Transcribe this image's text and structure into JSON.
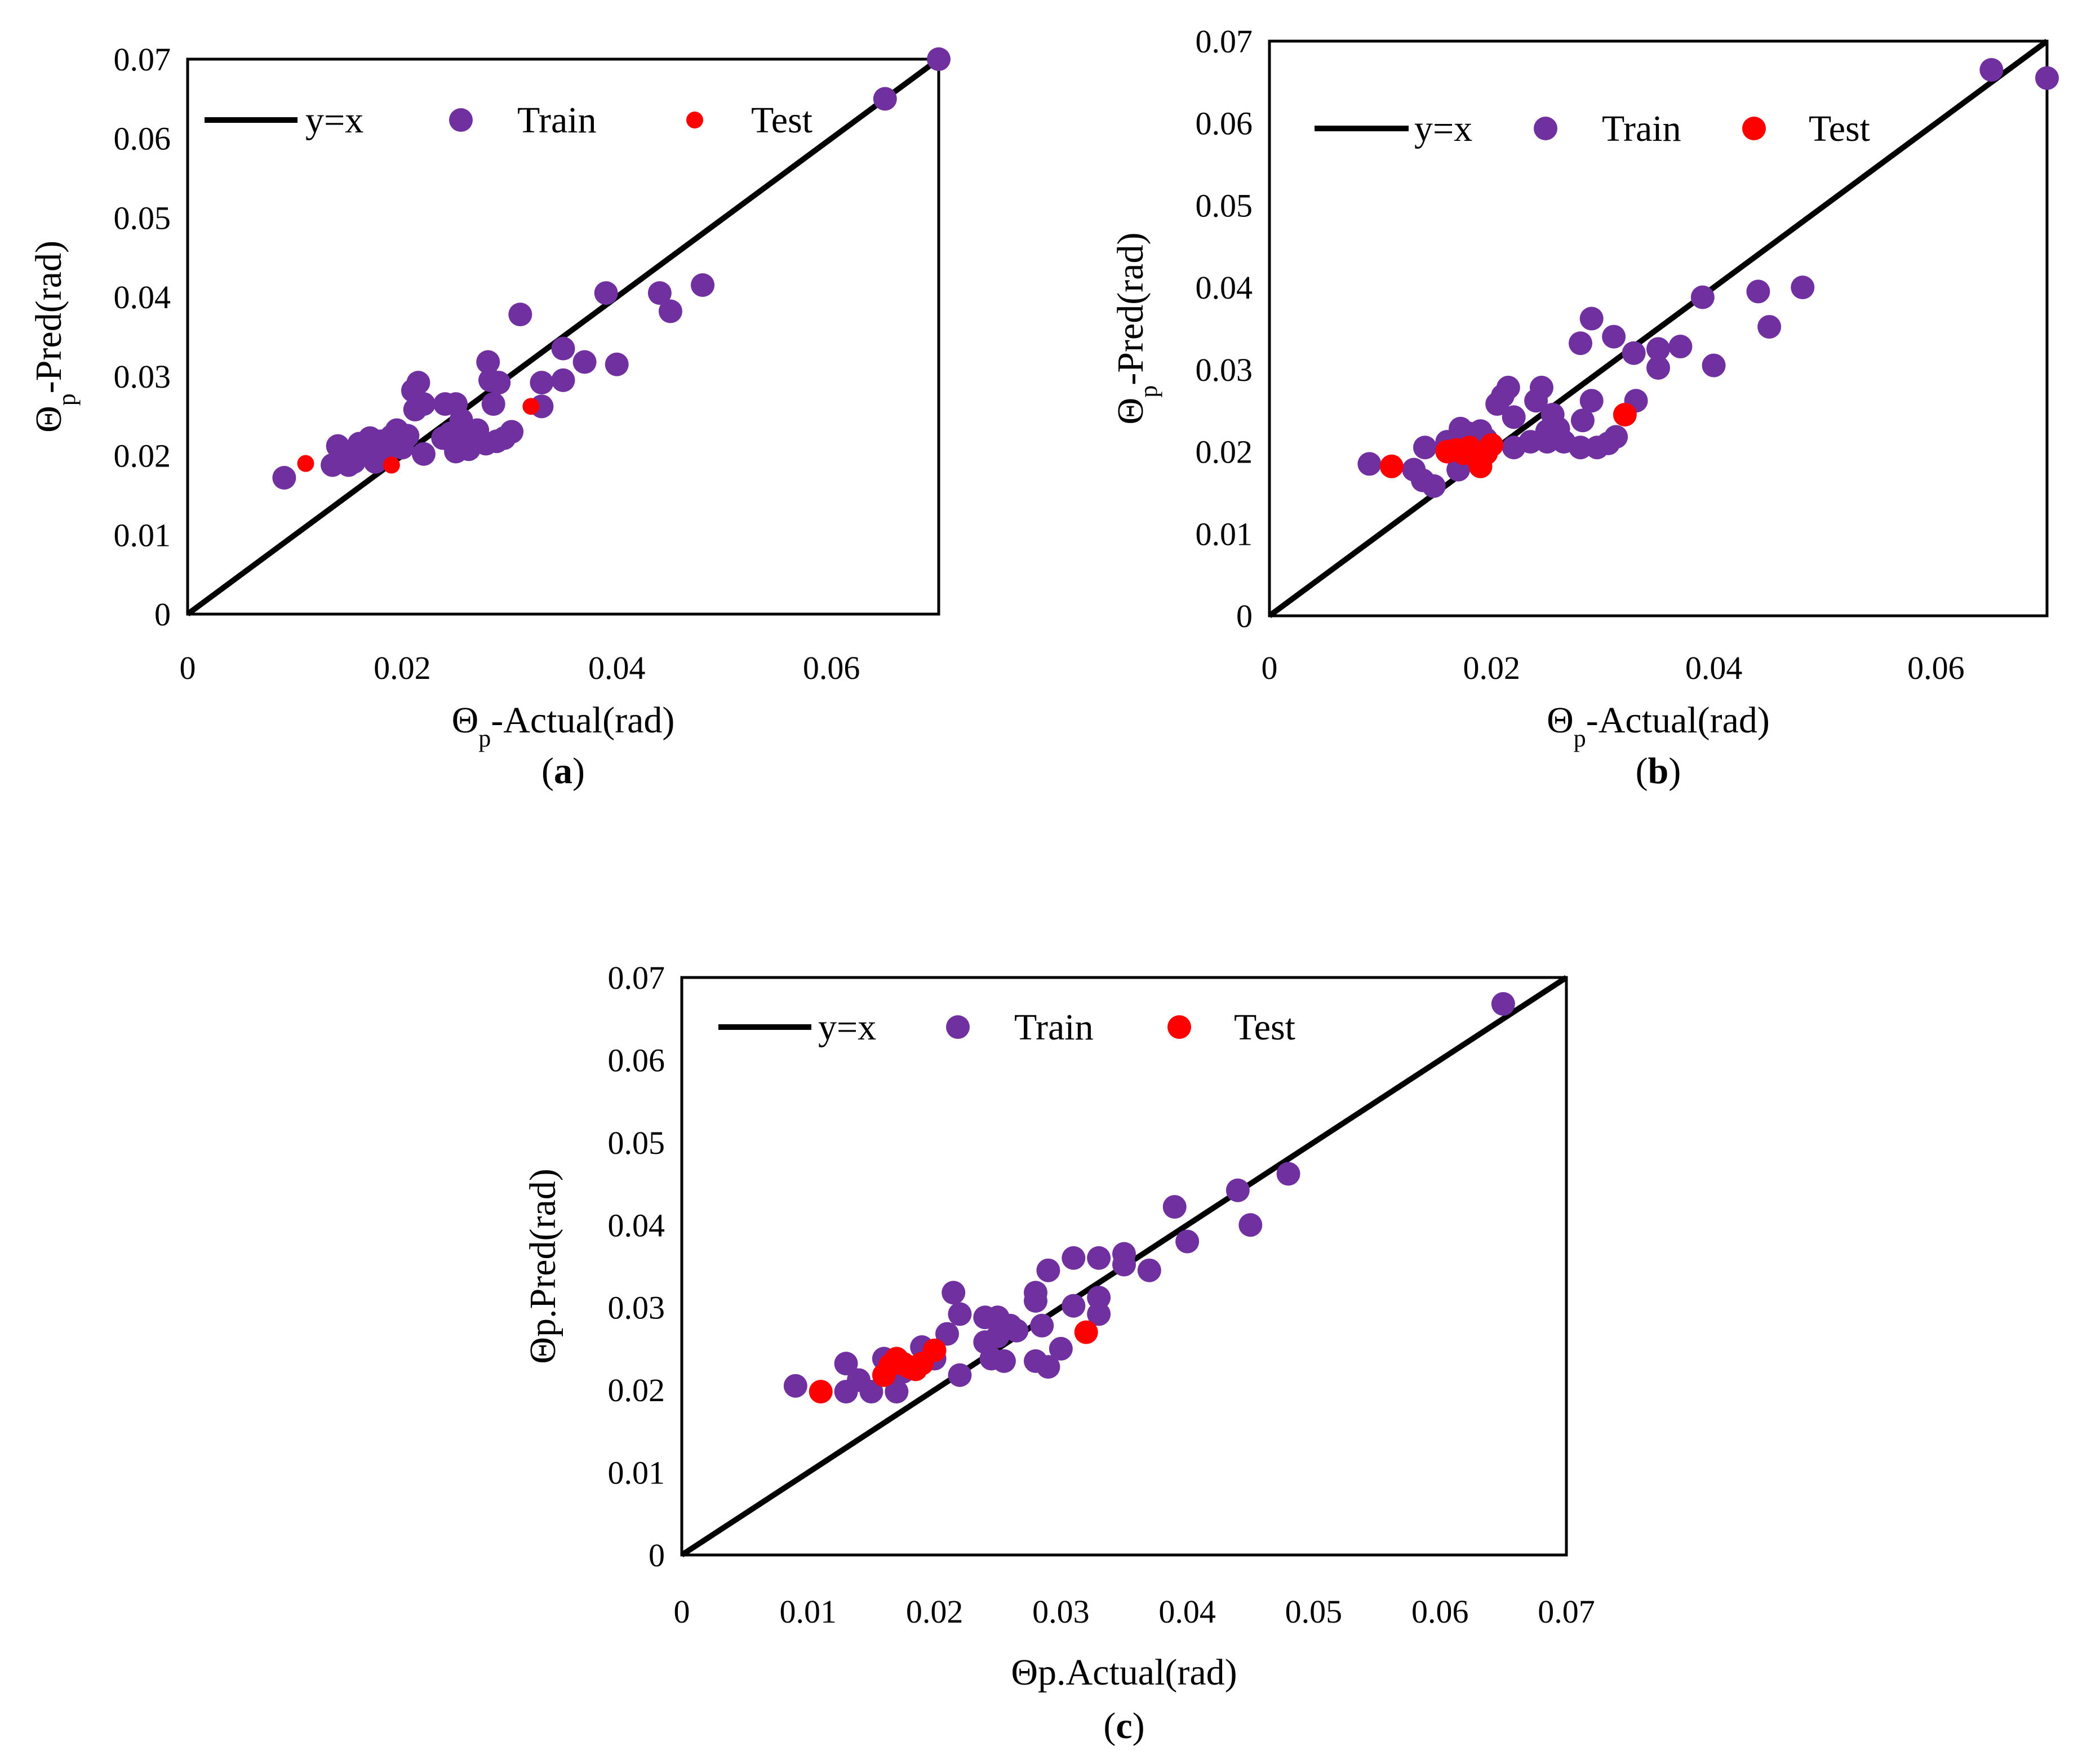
{
  "chart_data": [
    {
      "panel": "a",
      "panel_label": "(a)",
      "type": "scatter",
      "xlabel": {
        "main": "Θ",
        "sub": "p",
        "rest": "-Actual(rad)"
      },
      "ylabel": {
        "main": "Θ",
        "sub": "p",
        "rest": "-Pred(rad)"
      },
      "xlim": [
        0,
        0.07
      ],
      "ylim": [
        0,
        0.07
      ],
      "x_ticks": [
        "0",
        "0.02",
        "0.04",
        "0.06"
      ],
      "y_ticks": [
        "0",
        "0.01",
        "0.02",
        "0.03",
        "0.04",
        "0.05",
        "0.06",
        "0.07"
      ],
      "legend": {
        "line": "y=x",
        "train": "Train",
        "test": "Test"
      },
      "colors": {
        "line": "#000000",
        "train": "#7030a0",
        "test": "#ff0000"
      },
      "marker_size": {
        "train": "large",
        "test": "small"
      },
      "series": [
        {
          "name": "Train",
          "points": [
            [
              0.009,
              0.0172
            ],
            [
              0.0135,
              0.0188
            ],
            [
              0.014,
              0.0212
            ],
            [
              0.0145,
              0.0195
            ],
            [
              0.015,
              0.0188
            ],
            [
              0.0155,
              0.0192
            ],
            [
              0.016,
              0.0215
            ],
            [
              0.0165,
              0.0205
            ],
            [
              0.017,
              0.0222
            ],
            [
              0.0175,
              0.0192
            ],
            [
              0.018,
              0.0218
            ],
            [
              0.0185,
              0.0202
            ],
            [
              0.019,
              0.0224
            ],
            [
              0.0195,
              0.0232
            ],
            [
              0.02,
              0.021
            ],
            [
              0.0205,
              0.0225
            ],
            [
              0.021,
              0.0282
            ],
            [
              0.0212,
              0.0258
            ],
            [
              0.0215,
              0.0292
            ],
            [
              0.022,
              0.0265
            ],
            [
              0.022,
              0.0202
            ],
            [
              0.0238,
              0.0222
            ],
            [
              0.024,
              0.0265
            ],
            [
              0.0245,
              0.0228
            ],
            [
              0.025,
              0.0265
            ],
            [
              0.025,
              0.0205
            ],
            [
              0.0255,
              0.0245
            ],
            [
              0.026,
              0.0225
            ],
            [
              0.0262,
              0.0208
            ],
            [
              0.027,
              0.0232
            ],
            [
              0.0278,
              0.0215
            ],
            [
              0.028,
              0.0318
            ],
            [
              0.0282,
              0.0295
            ],
            [
              0.0285,
              0.0265
            ],
            [
              0.0288,
              0.0218
            ],
            [
              0.029,
              0.0292
            ],
            [
              0.0295,
              0.0222
            ],
            [
              0.0302,
              0.023
            ],
            [
              0.031,
              0.0378
            ],
            [
              0.033,
              0.0292
            ],
            [
              0.033,
              0.0262
            ],
            [
              0.035,
              0.0335
            ],
            [
              0.035,
              0.0295
            ],
            [
              0.037,
              0.0318
            ],
            [
              0.039,
              0.0405
            ],
            [
              0.04,
              0.0315
            ],
            [
              0.044,
              0.0405
            ],
            [
              0.045,
              0.0382
            ],
            [
              0.048,
              0.0415
            ],
            [
              0.065,
              0.065
            ],
            [
              0.07,
              0.07
            ]
          ]
        },
        {
          "name": "Test",
          "points": [
            [
              0.011,
              0.019
            ],
            [
              0.019,
              0.0188
            ],
            [
              0.032,
              0.0262
            ]
          ]
        }
      ]
    },
    {
      "panel": "b",
      "panel_label": "(b)",
      "type": "scatter",
      "xlabel": {
        "main": "Θ",
        "sub": "p",
        "rest": "-Actual(rad)"
      },
      "ylabel": {
        "main": "Θ",
        "sub": "p",
        "rest": "-Pred(rad)"
      },
      "xlim": [
        0,
        0.07
      ],
      "ylim": [
        0,
        0.07
      ],
      "x_ticks": [
        "0",
        "0.02",
        "0.04",
        "0.06"
      ],
      "y_ticks": [
        "0",
        "0.01",
        "0.02",
        "0.03",
        "0.04",
        "0.05",
        "0.06",
        "0.07"
      ],
      "legend": {
        "line": "y=x",
        "train": "Train",
        "test": "Test"
      },
      "colors": {
        "line": "#000000",
        "train": "#7030a0",
        "test": "#ff0000"
      },
      "marker_size": {
        "train": "large",
        "test": "large"
      },
      "series": [
        {
          "name": "Train",
          "points": [
            [
              0.009,
              0.0185
            ],
            [
              0.013,
              0.0178
            ],
            [
              0.0138,
              0.0165
            ],
            [
              0.014,
              0.0205
            ],
            [
              0.0148,
              0.0158
            ],
            [
              0.016,
              0.0212
            ],
            [
              0.017,
              0.0178
            ],
            [
              0.0172,
              0.0228
            ],
            [
              0.018,
              0.0222
            ],
            [
              0.019,
              0.0225
            ],
            [
              0.0195,
              0.0215
            ],
            [
              0.0205,
              0.0258
            ],
            [
              0.021,
              0.0268
            ],
            [
              0.0215,
              0.0278
            ],
            [
              0.022,
              0.0242
            ],
            [
              0.022,
              0.0205
            ],
            [
              0.0235,
              0.0212
            ],
            [
              0.024,
              0.0262
            ],
            [
              0.0245,
              0.0278
            ],
            [
              0.025,
              0.0225
            ],
            [
              0.025,
              0.0212
            ],
            [
              0.0255,
              0.0245
            ],
            [
              0.026,
              0.0228
            ],
            [
              0.0265,
              0.0212
            ],
            [
              0.028,
              0.0205
            ],
            [
              0.0282,
              0.0238
            ],
            [
              0.028,
              0.0332
            ],
            [
              0.029,
              0.0262
            ],
            [
              0.029,
              0.0362
            ],
            [
              0.0295,
              0.0205
            ],
            [
              0.0305,
              0.021
            ],
            [
              0.031,
              0.034
            ],
            [
              0.0312,
              0.0218
            ],
            [
              0.033,
              0.0262
            ],
            [
              0.0328,
              0.032
            ],
            [
              0.035,
              0.0302
            ],
            [
              0.035,
              0.0325
            ],
            [
              0.037,
              0.0328
            ],
            [
              0.039,
              0.0388
            ],
            [
              0.04,
              0.0305
            ],
            [
              0.044,
              0.0395
            ],
            [
              0.045,
              0.0352
            ],
            [
              0.048,
              0.04
            ],
            [
              0.065,
              0.0665
            ],
            [
              0.07,
              0.0655
            ]
          ]
        },
        {
          "name": "Test",
          "points": [
            [
              0.011,
              0.0182
            ],
            [
              0.016,
              0.02
            ],
            [
              0.0168,
              0.0202
            ],
            [
              0.0175,
              0.0198
            ],
            [
              0.018,
              0.0205
            ],
            [
              0.0185,
              0.0195
            ],
            [
              0.019,
              0.0182
            ],
            [
              0.0195,
              0.0198
            ],
            [
              0.02,
              0.0208
            ],
            [
              0.032,
              0.0245
            ]
          ]
        }
      ]
    },
    {
      "panel": "c",
      "panel_label": "(c)",
      "type": "scatter",
      "xlabel": {
        "main": "Θp.Actual(rad)",
        "sub": "",
        "rest": ""
      },
      "ylabel": {
        "main": "Θp.Pred(rad)",
        "sub": "",
        "rest": ""
      },
      "xlim": [
        0,
        0.07
      ],
      "ylim": [
        0,
        0.07
      ],
      "x_ticks": [
        "0",
        "0.01",
        "0.02",
        "0.03",
        "0.04",
        "0.05",
        "0.06",
        "0.07"
      ],
      "y_ticks": [
        "0",
        "0.01",
        "0.02",
        "0.03",
        "0.04",
        "0.05",
        "0.06",
        "0.07"
      ],
      "legend": {
        "line": "y=x",
        "train": "Train",
        "test": "Test"
      },
      "colors": {
        "line": "#000000",
        "train": "#7030a0",
        "test": "#ff0000"
      },
      "marker_size": {
        "train": "large",
        "test": "large"
      },
      "series": [
        {
          "name": "Train",
          "points": [
            [
              0.009,
              0.0205
            ],
            [
              0.013,
              0.0232
            ],
            [
              0.013,
              0.0198
            ],
            [
              0.014,
              0.0212
            ],
            [
              0.015,
              0.0198
            ],
            [
              0.016,
              0.0238
            ],
            [
              0.017,
              0.0198
            ],
            [
              0.0175,
              0.0222
            ],
            [
              0.018,
              0.0228
            ],
            [
              0.019,
              0.0252
            ],
            [
              0.02,
              0.0238
            ],
            [
              0.021,
              0.0268
            ],
            [
              0.0215,
              0.0318
            ],
            [
              0.022,
              0.0292
            ],
            [
              0.022,
              0.0218
            ],
            [
              0.024,
              0.0288
            ],
            [
              0.024,
              0.0258
            ],
            [
              0.0245,
              0.0238
            ],
            [
              0.025,
              0.0288
            ],
            [
              0.025,
              0.0265
            ],
            [
              0.0255,
              0.0235
            ],
            [
              0.026,
              0.0278
            ],
            [
              0.0265,
              0.0272
            ],
            [
              0.028,
              0.0318
            ],
            [
              0.028,
              0.0308
            ],
            [
              0.028,
              0.0235
            ],
            [
              0.0285,
              0.0278
            ],
            [
              0.029,
              0.0345
            ],
            [
              0.029,
              0.0228
            ],
            [
              0.03,
              0.025
            ],
            [
              0.031,
              0.0302
            ],
            [
              0.031,
              0.036
            ],
            [
              0.033,
              0.036
            ],
            [
              0.033,
              0.0312
            ],
            [
              0.033,
              0.0292
            ],
            [
              0.035,
              0.0365
            ],
            [
              0.035,
              0.0352
            ],
            [
              0.037,
              0.0345
            ],
            [
              0.039,
              0.0422
            ],
            [
              0.04,
              0.038
            ],
            [
              0.044,
              0.0442
            ],
            [
              0.045,
              0.04
            ],
            [
              0.048,
              0.0462
            ],
            [
              0.065,
              0.0668
            ]
          ]
        },
        {
          "name": "Test",
          "points": [
            [
              0.011,
              0.0198
            ],
            [
              0.016,
              0.0218
            ],
            [
              0.0165,
              0.023
            ],
            [
              0.017,
              0.0238
            ],
            [
              0.0175,
              0.0232
            ],
            [
              0.018,
              0.0228
            ],
            [
              0.0185,
              0.0225
            ],
            [
              0.019,
              0.0232
            ],
            [
              0.02,
              0.0248
            ],
            [
              0.032,
              0.027
            ]
          ]
        }
      ]
    }
  ]
}
